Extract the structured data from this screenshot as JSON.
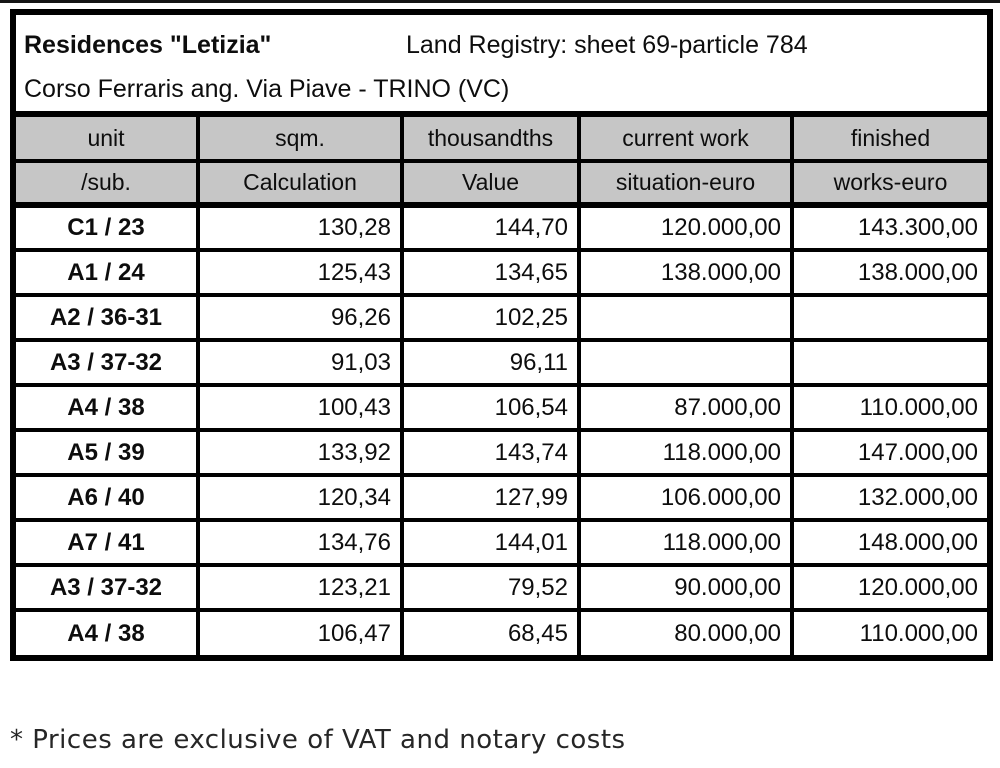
{
  "title": {
    "name": "Residences \"Letizia\"",
    "registry": "Land Registry: sheet 69-particle 784",
    "address": "Corso Ferraris ang. Via Piave - TRINO (VC)"
  },
  "table": {
    "header_row1": [
      "unit",
      "sqm.",
      "thousandths",
      "current work",
      "finished"
    ],
    "header_row2": [
      "/sub.",
      "Calculation",
      "Value",
      "situation-euro",
      "works-euro"
    ],
    "rows": [
      {
        "unit": "C1 / 23",
        "sqm": "130,28",
        "thousandths": "144,70",
        "current": "120.000,00",
        "finished": "143.300,00"
      },
      {
        "unit": "A1 / 24",
        "sqm": "125,43",
        "thousandths": "134,65",
        "current": "138.000,00",
        "finished": "138.000,00"
      },
      {
        "unit": "A2 / 36-31",
        "sqm": "96,26",
        "thousandths": "102,25",
        "current": "",
        "finished": ""
      },
      {
        "unit": "A3 / 37-32",
        "sqm": "91,03",
        "thousandths": "96,11",
        "current": "",
        "finished": ""
      },
      {
        "unit": "A4 / 38",
        "sqm": "100,43",
        "thousandths": "106,54",
        "current": "87.000,00",
        "finished": "110.000,00"
      },
      {
        "unit": "A5 / 39",
        "sqm": "133,92",
        "thousandths": "143,74",
        "current": "118.000,00",
        "finished": "147.000,00"
      },
      {
        "unit": "A6 / 40",
        "sqm": "120,34",
        "thousandths": "127,99",
        "current": "106.000,00",
        "finished": "132.000,00"
      },
      {
        "unit": "A7 / 41",
        "sqm": "134,76",
        "thousandths": "144,01",
        "current": "118.000,00",
        "finished": "148.000,00"
      },
      {
        "unit": "A3 / 37-32",
        "sqm": "123,21",
        "thousandths": "79,52",
        "current": "90.000,00",
        "finished": "120.000,00"
      },
      {
        "unit": "A4 / 38",
        "sqm": "106,47",
        "thousandths": "68,45",
        "current": "80.000,00",
        "finished": "110.000,00"
      }
    ]
  },
  "footer": {
    "note": "* Prices are exclusive of VAT and notary costs"
  },
  "colors": {
    "header_bg": "#c6c6c6",
    "border": "#000000",
    "text": "#0d0d0d"
  }
}
